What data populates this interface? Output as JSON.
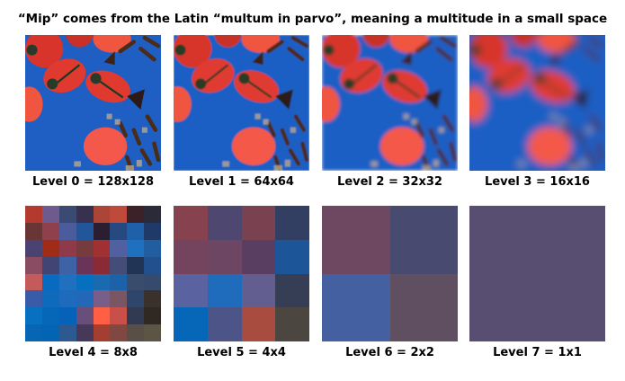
{
  "title": "“Mip” comes from the Latin “multum in parvo”, meaning a multitude in a small space",
  "levels": [
    {
      "label": "Level 0 = 128x128",
      "blur": 0
    },
    {
      "label": "Level 1 = 64x64",
      "blur": 0.5
    },
    {
      "label": "Level 2 = 32x32",
      "blur": 1.3
    },
    {
      "label": "Level 3 = 16x16",
      "blur": 3
    },
    {
      "label": "Level 4 = 8x8",
      "size": 8,
      "colors": [
        "#b33a2e",
        "#6f5a8e",
        "#3b4a72",
        "#37314f",
        "#ac4537",
        "#bd4a3b",
        "#3a2228",
        "#2a2a38",
        "#6a3535",
        "#8e404c",
        "#4a5c9c",
        "#22569a",
        "#2a1e30",
        "#264a80",
        "#1f60aa",
        "#1f3a68",
        "#4a4270",
        "#a02c18",
        "#8e3a48",
        "#743c3c",
        "#a03032",
        "#5060a0",
        "#2070c0",
        "#205ea0",
        "#8a4c62",
        "#424474",
        "#3e62a6",
        "#6a3458",
        "#8a2a34",
        "#444c78",
        "#223456",
        "#22508e",
        "#c45a5a",
        "#086ac0",
        "#2070c0",
        "#0670c0",
        "#1a6ab0",
        "#1c62a8",
        "#3a4c6c",
        "#364a6c",
        "#3a5ca8",
        "#106abc",
        "#1e6abc",
        "#2466b8",
        "#7a5e8a",
        "#7a5664",
        "#2e466c",
        "#3a302c",
        "#0870c0",
        "#0666b8",
        "#0662b8",
        "#6a4e7a",
        "#ff6044",
        "#c85048",
        "#323a52",
        "#302822",
        "#0666b4",
        "#0464b4",
        "#2c5a90",
        "#463858",
        "#a43e30",
        "#804840",
        "#585046",
        "#5c5444"
      ]
    },
    {
      "label": "Level 5 = 4x4",
      "size": 4,
      "colors": [
        "#86424e",
        "#4e4870",
        "#7a4250",
        "#323e62",
        "#74445e",
        "#6c4662",
        "#5a3e62",
        "#1c5698",
        "#5a62a0",
        "#206cbc",
        "#625e90",
        "#363e56",
        "#0666b8",
        "#4c5488",
        "#a84c40",
        "#4c4640"
      ]
    },
    {
      "label": "Level 6 = 2x2",
      "size": 2,
      "colors": [
        "#6e4860",
        "#484a70",
        "#4560a0",
        "#604f60"
      ]
    },
    {
      "label": "Level 7 = 1x1",
      "size": 1,
      "colors": [
        "#574e72"
      ]
    }
  ]
}
